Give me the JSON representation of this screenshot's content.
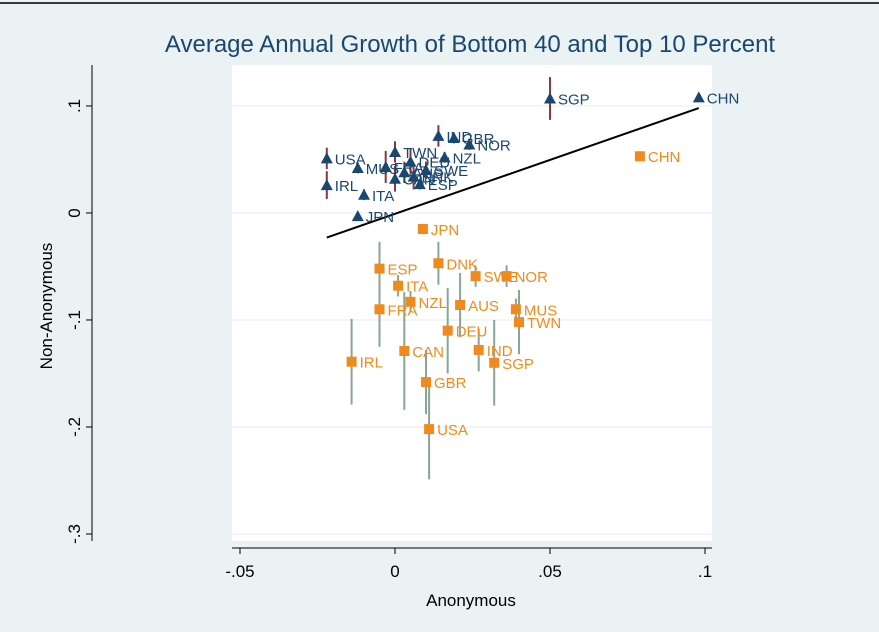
{
  "chart_data": {
    "type": "scatter",
    "title": "Average Annual Growth of Bottom 40 and Top 10 Percent",
    "x_label": "Anonymous",
    "y_label": "Non-Anonymous",
    "xlim": [
      -0.055,
      0.105
    ],
    "ylim": [
      -0.31,
      0.135
    ],
    "xticks": [
      {
        "value": -0.05,
        "label": "-.05"
      },
      0,
      {
        "value": 0.05,
        "label": ".05"
      },
      {
        "value": 0.1,
        "label": ".1"
      }
    ],
    "yticks": [
      {
        "value": 0.1,
        "label": ".1"
      },
      0,
      {
        "value": -0.1,
        "label": "-.1"
      },
      {
        "value": -0.2,
        "label": "-.2"
      },
      {
        "value": -0.3,
        "label": "-.3"
      }
    ],
    "grid": true,
    "series": [
      {
        "marker": "triangle",
        "color": "#1a476f",
        "error_color": "#90353b",
        "label_color": "#1a476f",
        "labels": [
          "SGP",
          "CHN",
          "IND",
          "GBR",
          "NOR",
          "NZL",
          "USA",
          "TWN",
          "MUS",
          "FRA",
          "DEU",
          "AUS",
          "SWE",
          "DNK",
          "CAN",
          "ESP",
          "IRL",
          "ITA",
          "JPN"
        ],
        "x": [
          0.05,
          0.098,
          0.014,
          0.019,
          0.024,
          0.016,
          -0.022,
          0.0,
          -0.012,
          -0.003,
          0.005,
          0.003,
          0.01,
          0.006,
          0.0,
          0.008,
          -0.022,
          -0.01,
          -0.012
        ],
        "values": [
          0.107,
          0.108,
          0.072,
          0.07,
          0.064,
          0.052,
          0.051,
          0.057,
          0.042,
          0.043,
          0.048,
          0.038,
          0.04,
          0.034,
          0.032,
          0.027,
          0.026,
          0.017,
          -0.003
        ],
        "errors": [
          0.02,
          null,
          0.01,
          0.005,
          0.005,
          0.005,
          0.01,
          0.01,
          0.005,
          0.015,
          0.012,
          0.01,
          0.008,
          0.012,
          0.012,
          0.005,
          0.013,
          0.005,
          0.003
        ]
      },
      {
        "marker": "square",
        "color": "#f08a1c",
        "error_color": "#8aa596",
        "label_color": "#f08a1c",
        "labels": [
          "CHN",
          "JPN",
          "DNK",
          "SWE",
          "NOR",
          "ESP",
          "ITA",
          "NZL",
          "AUS",
          "MUS",
          "FRA",
          "TWN",
          "DEU",
          "CAN",
          "IND",
          "SGP",
          "IRL",
          "GBR",
          "USA"
        ],
        "x": [
          0.079,
          0.009,
          0.014,
          0.026,
          0.036,
          -0.005,
          0.001,
          0.005,
          0.021,
          0.039,
          -0.005,
          0.04,
          0.017,
          0.003,
          0.027,
          0.032,
          -0.014,
          0.01,
          0.011
        ],
        "values": [
          0.053,
          -0.015,
          -0.047,
          -0.059,
          -0.059,
          -0.052,
          -0.068,
          -0.083,
          -0.086,
          -0.09,
          -0.09,
          -0.102,
          -0.11,
          -0.129,
          -0.128,
          -0.14,
          -0.139,
          -0.158,
          -0.202
        ],
        "errors": [
          null,
          null,
          0.02,
          0.01,
          0.01,
          0.025,
          0.01,
          0.01,
          0.03,
          0.01,
          0.035,
          0.03,
          0.04,
          0.055,
          0.02,
          0.04,
          0.04,
          0.03,
          0.047
        ]
      }
    ],
    "fit_line": {
      "x": [
        -0.022,
        0.098
      ],
      "y": [
        -0.023,
        0.098
      ],
      "color": "#000000"
    }
  }
}
